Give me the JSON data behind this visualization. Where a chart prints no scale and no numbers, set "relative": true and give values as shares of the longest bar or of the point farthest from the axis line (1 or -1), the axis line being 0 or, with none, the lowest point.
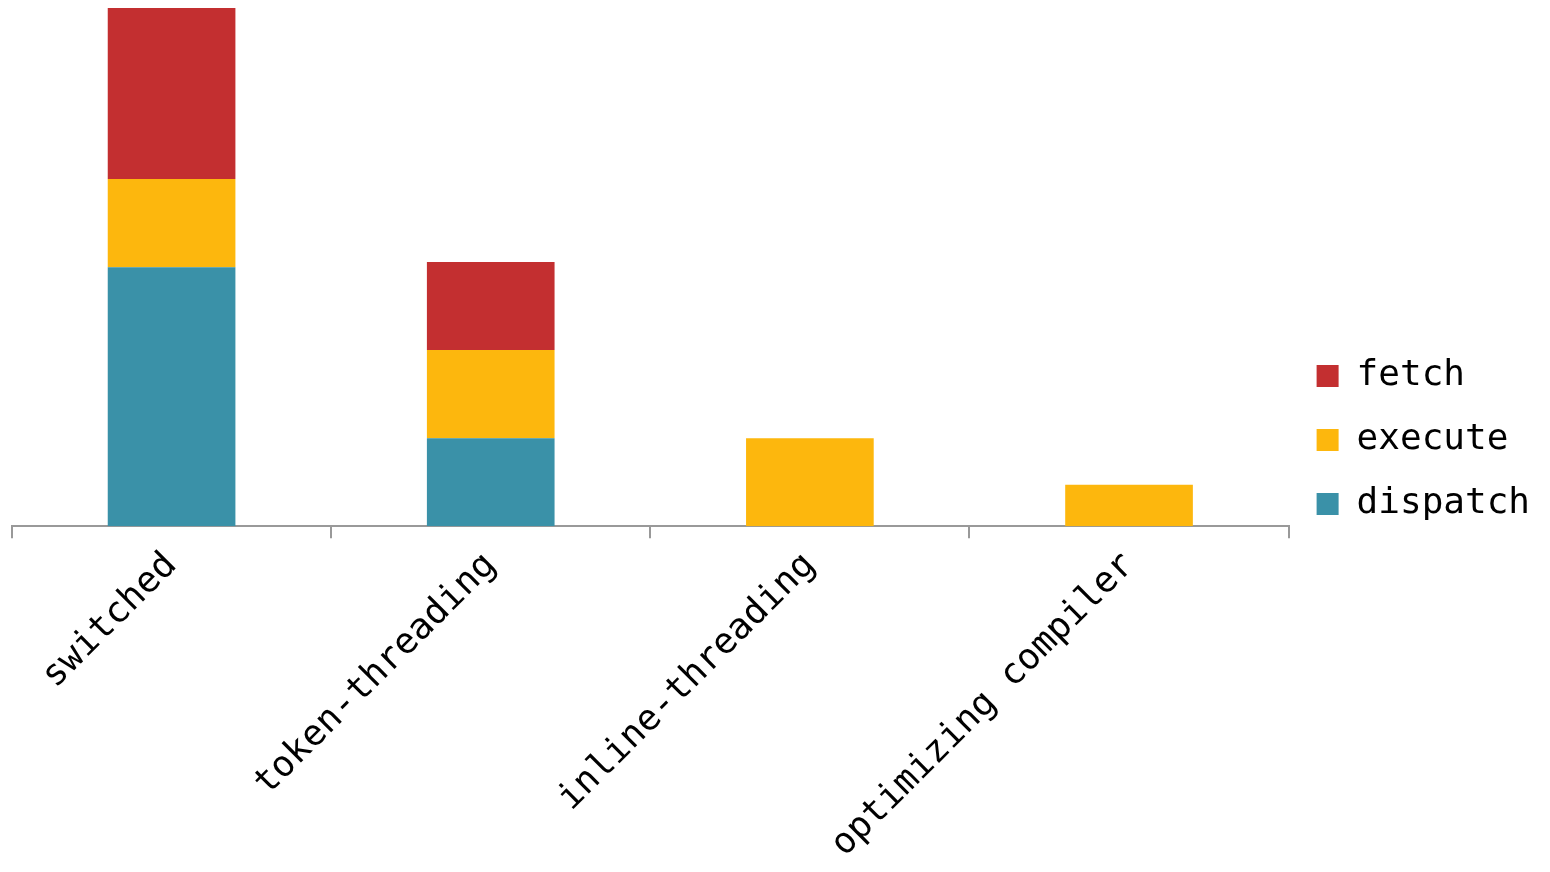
{
  "chart_data": {
    "type": "bar",
    "stacked": true,
    "relative": true,
    "legend": "right",
    "categories": [
      "switched",
      "token-threading",
      "inline-threading",
      "optimizing compiler"
    ],
    "series": [
      {
        "name": "dispatch",
        "color": "#3a91a8",
        "values": [
          0.5,
          0.17,
          0,
          0
        ]
      },
      {
        "name": "execute",
        "color": "#fdb70d",
        "values": [
          0.17,
          0.17,
          0.17,
          0.08
        ]
      },
      {
        "name": "fetch",
        "color": "#c32f30",
        "values": [
          0.33,
          0.17,
          0,
          0
        ]
      }
    ]
  }
}
